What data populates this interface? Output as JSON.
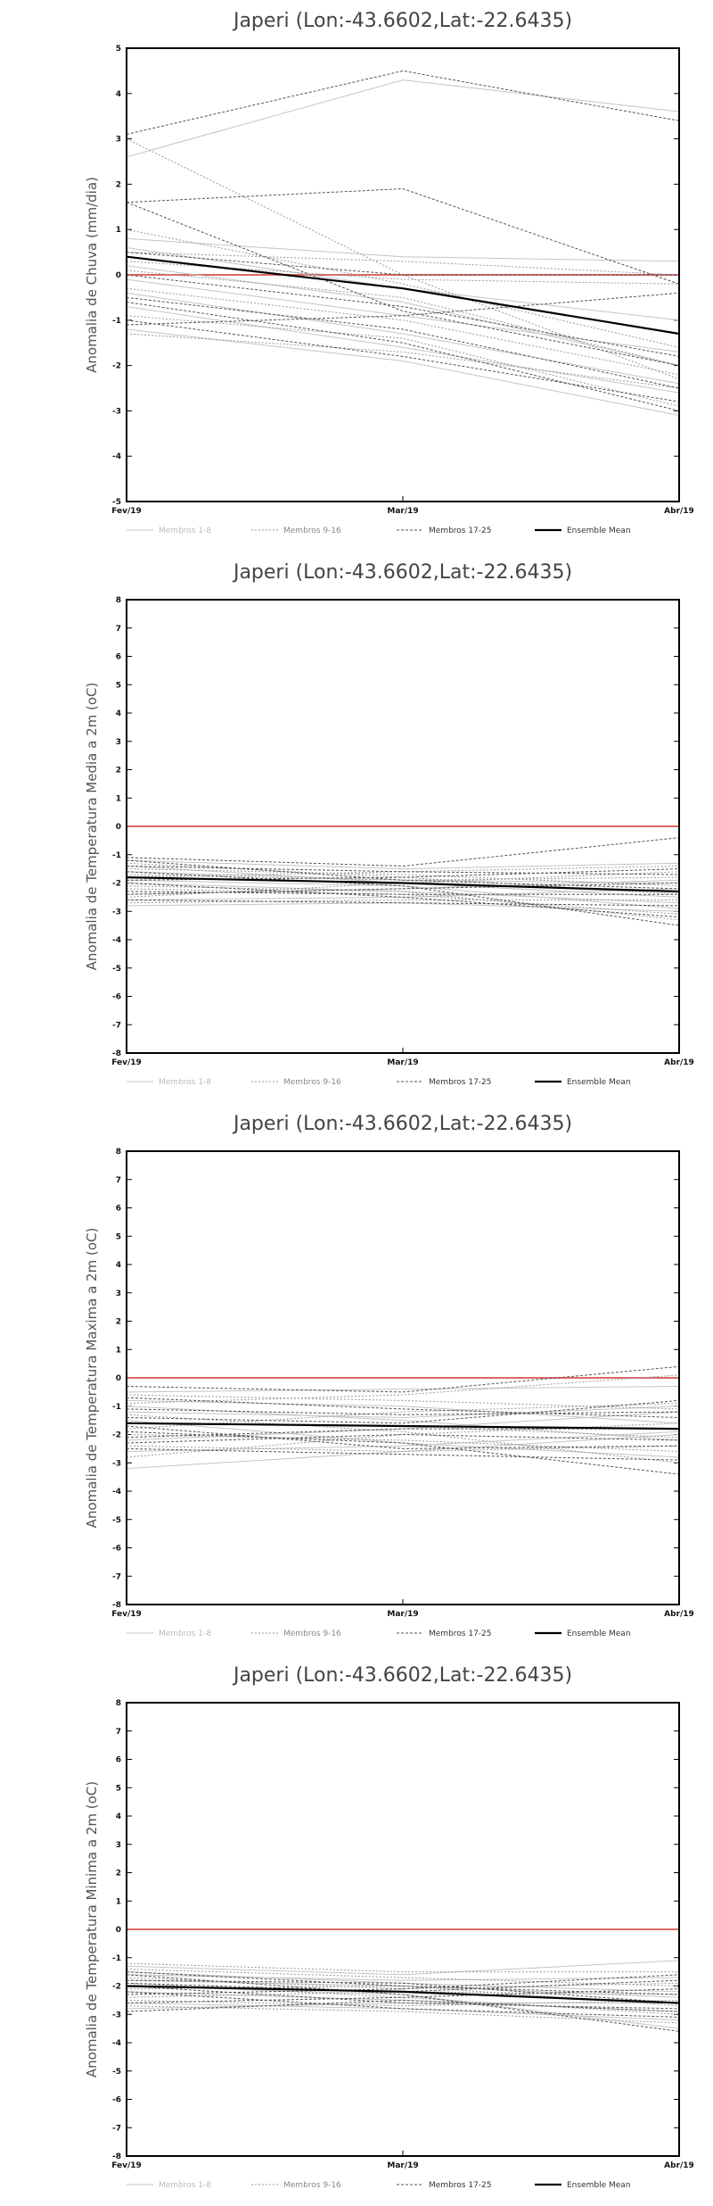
{
  "chart_data": [
    {
      "type": "line",
      "title": "Japeri (Lon:-43.6602,Lat:-22.6435)",
      "ylabel": "Anomalia de Chuva (mm/dia)",
      "categories": [
        "Fev/19",
        "Mar/19",
        "Abr/19"
      ],
      "ylim": [
        -5,
        5
      ],
      "yticks": [
        -5,
        -4,
        -3,
        -2,
        -1,
        0,
        1,
        2,
        3,
        4,
        5
      ],
      "legend": {
        "placement": "bottom",
        "entries": [
          "Membros 1-8",
          "Membros 9-16",
          "Membros 17-25",
          "Ensemble Mean"
        ]
      },
      "reference_line": 0,
      "series": [
        {
          "group": 1,
          "values": [
            2.6,
            4.3,
            3.6
          ]
        },
        {
          "group": 1,
          "values": [
            0.8,
            0.4,
            0.3
          ]
        },
        {
          "group": 1,
          "values": [
            -0.1,
            -0.9,
            -1.7
          ]
        },
        {
          "group": 1,
          "values": [
            -0.4,
            -1.3,
            -2.4
          ]
        },
        {
          "group": 1,
          "values": [
            0.6,
            -0.3,
            -1.0
          ]
        },
        {
          "group": 1,
          "values": [
            -1.2,
            -1.9,
            -3.1
          ]
        },
        {
          "group": 1,
          "values": [
            0.2,
            -0.6,
            -2.0
          ]
        },
        {
          "group": 1,
          "values": [
            -0.7,
            -1.6,
            -2.6
          ]
        },
        {
          "group": 2,
          "values": [
            3.0,
            0.0,
            -2.3
          ]
        },
        {
          "group": 2,
          "values": [
            0.5,
            0.3,
            0.0
          ]
        },
        {
          "group": 2,
          "values": [
            -0.3,
            -1.0,
            -2.2
          ]
        },
        {
          "group": 2,
          "values": [
            -1.3,
            -1.7,
            -2.5
          ]
        },
        {
          "group": 2,
          "values": [
            1.0,
            -0.2,
            -1.6
          ]
        },
        {
          "group": 2,
          "values": [
            0.1,
            -0.5,
            -2.0
          ]
        },
        {
          "group": 2,
          "values": [
            -0.9,
            -1.4,
            -2.9
          ]
        },
        {
          "group": 2,
          "values": [
            0.3,
            -0.1,
            -0.2
          ]
        },
        {
          "group": 3,
          "values": [
            3.1,
            4.5,
            3.4
          ]
        },
        {
          "group": 3,
          "values": [
            1.6,
            1.9,
            -0.2
          ]
        },
        {
          "group": 3,
          "values": [
            1.6,
            -0.8,
            -2.0
          ]
        },
        {
          "group": 3,
          "values": [
            0.5,
            0.0,
            0.0
          ]
        },
        {
          "group": 3,
          "values": [
            -1.1,
            -0.9,
            -0.4
          ]
        },
        {
          "group": 3,
          "values": [
            -0.5,
            -1.2,
            -2.5
          ]
        },
        {
          "group": 3,
          "values": [
            -1.0,
            -1.8,
            -2.8
          ]
        },
        {
          "group": 3,
          "values": [
            0.0,
            -0.7,
            -1.8
          ]
        },
        {
          "group": 3,
          "values": [
            -0.6,
            -1.5,
            -3.0
          ]
        },
        {
          "group": "mean",
          "values": [
            0.4,
            -0.3,
            -1.3
          ]
        }
      ]
    },
    {
      "type": "line",
      "title": "Japeri (Lon:-43.6602,Lat:-22.6435)",
      "ylabel": "Anomalia de Temperatura Media a 2m (oC)",
      "categories": [
        "Fev/19",
        "Mar/19",
        "Abr/19"
      ],
      "ylim": [
        -8,
        8
      ],
      "yticks": [
        -8,
        -7,
        -6,
        -5,
        -4,
        -3,
        -2,
        -1,
        0,
        1,
        2,
        3,
        4,
        5,
        6,
        7,
        8
      ],
      "legend": {
        "placement": "bottom",
        "entries": [
          "Membros 1-8",
          "Membros 9-16",
          "Membros 17-25",
          "Ensemble Mean"
        ]
      },
      "reference_line": 0,
      "series": [
        {
          "group": 1,
          "values": [
            -1.2,
            -1.5,
            -1.3
          ]
        },
        {
          "group": 1,
          "values": [
            -2.0,
            -2.3,
            -2.7
          ]
        },
        {
          "group": 1,
          "values": [
            -2.8,
            -2.7,
            -3.0
          ]
        },
        {
          "group": 1,
          "values": [
            -1.6,
            -1.9,
            -2.0
          ]
        },
        {
          "group": 1,
          "values": [
            -2.4,
            -2.2,
            -1.9
          ]
        },
        {
          "group": 1,
          "values": [
            -1.4,
            -2.0,
            -2.5
          ]
        },
        {
          "group": 1,
          "values": [
            -2.6,
            -2.5,
            -2.2
          ]
        },
        {
          "group": 1,
          "values": [
            -1.9,
            -2.1,
            -2.9
          ]
        },
        {
          "group": 2,
          "values": [
            -1.3,
            -1.8,
            -2.4
          ]
        },
        {
          "group": 2,
          "values": [
            -1.8,
            -1.6,
            -1.4
          ]
        },
        {
          "group": 2,
          "values": [
            -2.2,
            -2.4,
            -3.1
          ]
        },
        {
          "group": 2,
          "values": [
            -2.5,
            -2.0,
            -1.6
          ]
        },
        {
          "group": 2,
          "values": [
            -1.5,
            -1.7,
            -2.1
          ]
        },
        {
          "group": 2,
          "values": [
            -2.7,
            -2.6,
            -2.6
          ]
        },
        {
          "group": 2,
          "values": [
            -2.1,
            -2.3,
            -3.3
          ]
        },
        {
          "group": 2,
          "values": [
            -1.7,
            -1.9,
            -1.8
          ]
        },
        {
          "group": 3,
          "values": [
            -1.1,
            -1.4,
            -0.4
          ]
        },
        {
          "group": 3,
          "values": [
            -1.6,
            -2.1,
            -3.5
          ]
        },
        {
          "group": 3,
          "values": [
            -2.3,
            -2.4,
            -2.4
          ]
        },
        {
          "group": 3,
          "values": [
            -1.9,
            -1.8,
            -1.5
          ]
        },
        {
          "group": 3,
          "values": [
            -2.0,
            -2.5,
            -3.2
          ]
        },
        {
          "group": 3,
          "values": [
            -1.4,
            -1.6,
            -1.7
          ]
        },
        {
          "group": 3,
          "values": [
            -2.6,
            -2.7,
            -2.8
          ]
        },
        {
          "group": 3,
          "values": [
            -1.2,
            -1.9,
            -2.2
          ]
        },
        {
          "group": 3,
          "values": [
            -2.4,
            -2.2,
            -2.0
          ]
        },
        {
          "group": "mean",
          "values": [
            -1.8,
            -2.0,
            -2.3
          ]
        }
      ]
    },
    {
      "type": "line",
      "title": "Japeri (Lon:-43.6602,Lat:-22.6435)",
      "ylabel": "Anomalia de Temperatura Maxima a 2m (oC)",
      "categories": [
        "Fev/19",
        "Mar/19",
        "Abr/19"
      ],
      "ylim": [
        -8,
        8
      ],
      "yticks": [
        -8,
        -7,
        -6,
        -5,
        -4,
        -3,
        -2,
        -1,
        0,
        1,
        2,
        3,
        4,
        5,
        6,
        7,
        8
      ],
      "legend": {
        "placement": "bottom",
        "entries": [
          "Membros 1-8",
          "Membros 9-16",
          "Membros 17-25",
          "Ensemble Mean"
        ]
      },
      "reference_line": 0,
      "series": [
        {
          "group": 1,
          "values": [
            -3.2,
            -2.6,
            -2.0
          ]
        },
        {
          "group": 1,
          "values": [
            -0.5,
            -0.4,
            -0.3
          ]
        },
        {
          "group": 1,
          "values": [
            -1.0,
            -1.5,
            -2.2
          ]
        },
        {
          "group": 1,
          "values": [
            -2.2,
            -1.8,
            -1.2
          ]
        },
        {
          "group": 1,
          "values": [
            -1.5,
            -2.3,
            -2.8
          ]
        },
        {
          "group": 1,
          "values": [
            -0.8,
            -1.0,
            -1.6
          ]
        },
        {
          "group": 1,
          "values": [
            -2.6,
            -2.4,
            -1.9
          ]
        },
        {
          "group": 1,
          "values": [
            -1.2,
            -1.4,
            -1.0
          ]
        },
        {
          "group": 2,
          "values": [
            -0.6,
            -0.8,
            -1.1
          ]
        },
        {
          "group": 2,
          "values": [
            -2.0,
            -2.2,
            -2.6
          ]
        },
        {
          "group": 2,
          "values": [
            -1.8,
            -1.2,
            -0.9
          ]
        },
        {
          "group": 2,
          "values": [
            -2.4,
            -2.6,
            -2.4
          ]
        },
        {
          "group": 2,
          "values": [
            -1.3,
            -1.9,
            -3.0
          ]
        },
        {
          "group": 2,
          "values": [
            -0.9,
            -0.6,
            0.1
          ]
        },
        {
          "group": 2,
          "values": [
            -2.8,
            -2.0,
            -1.6
          ]
        },
        {
          "group": 2,
          "values": [
            -1.6,
            -1.7,
            -2.1
          ]
        },
        {
          "group": 3,
          "values": [
            -0.3,
            -0.5,
            0.4
          ]
        },
        {
          "group": 3,
          "values": [
            -1.9,
            -2.3,
            -3.4
          ]
        },
        {
          "group": 3,
          "values": [
            -1.1,
            -1.3,
            -1.2
          ]
        },
        {
          "group": 3,
          "values": [
            -2.3,
            -2.0,
            -2.2
          ]
        },
        {
          "group": 3,
          "values": [
            -1.4,
            -1.6,
            -0.8
          ]
        },
        {
          "group": 3,
          "values": [
            -2.5,
            -2.7,
            -2.9
          ]
        },
        {
          "group": 3,
          "values": [
            -0.7,
            -1.1,
            -1.4
          ]
        },
        {
          "group": 3,
          "values": [
            -1.7,
            -2.5,
            -2.4
          ]
        },
        {
          "group": 3,
          "values": [
            -2.1,
            -1.8,
            -1.8
          ]
        },
        {
          "group": "mean",
          "values": [
            -1.6,
            -1.7,
            -1.8
          ]
        }
      ]
    },
    {
      "type": "line",
      "title": "Japeri (Lon:-43.6602,Lat:-22.6435)",
      "ylabel": "Anomalia de Temperatura Minima a 2m (oC)",
      "categories": [
        "Fev/19",
        "Mar/19",
        "Abr/19"
      ],
      "ylim": [
        -8,
        8
      ],
      "yticks": [
        -8,
        -7,
        -6,
        -5,
        -4,
        -3,
        -2,
        -1,
        0,
        1,
        2,
        3,
        4,
        5,
        6,
        7,
        8
      ],
      "legend": {
        "placement": "bottom",
        "entries": [
          "Membros 1-8",
          "Membros 9-16",
          "Membros 17-25",
          "Ensemble Mean"
        ]
      },
      "reference_line": 0,
      "series": [
        {
          "group": 1,
          "values": [
            -1.3,
            -1.6,
            -1.1
          ]
        },
        {
          "group": 1,
          "values": [
            -2.6,
            -2.8,
            -3.2
          ]
        },
        {
          "group": 1,
          "values": [
            -1.8,
            -2.0,
            -2.4
          ]
        },
        {
          "group": 1,
          "values": [
            -2.2,
            -2.5,
            -2.9
          ]
        },
        {
          "group": 1,
          "values": [
            -1.5,
            -1.9,
            -2.2
          ]
        },
        {
          "group": 1,
          "values": [
            -2.8,
            -2.6,
            -2.6
          ]
        },
        {
          "group": 1,
          "values": [
            -2.0,
            -2.3,
            -3.5
          ]
        },
        {
          "group": 1,
          "values": [
            -1.6,
            -1.8,
            -1.7
          ]
        },
        {
          "group": 2,
          "values": [
            -1.4,
            -1.7,
            -2.0
          ]
        },
        {
          "group": 2,
          "values": [
            -2.4,
            -2.2,
            -2.3
          ]
        },
        {
          "group": 2,
          "values": [
            -1.9,
            -2.4,
            -3.0
          ]
        },
        {
          "group": 2,
          "values": [
            -2.7,
            -2.9,
            -3.3
          ]
        },
        {
          "group": 2,
          "values": [
            -1.7,
            -2.1,
            -1.9
          ]
        },
        {
          "group": 2,
          "values": [
            -2.1,
            -2.0,
            -2.7
          ]
        },
        {
          "group": 2,
          "values": [
            -2.5,
            -2.7,
            -2.5
          ]
        },
        {
          "group": 2,
          "values": [
            -1.2,
            -1.5,
            -1.5
          ]
        },
        {
          "group": 3,
          "values": [
            -2.3,
            -2.1,
            -1.6
          ]
        },
        {
          "group": 3,
          "values": [
            -1.6,
            -2.3,
            -3.6
          ]
        },
        {
          "group": 3,
          "values": [
            -2.0,
            -2.6,
            -2.8
          ]
        },
        {
          "group": 3,
          "values": [
            -2.6,
            -2.4,
            -2.1
          ]
        },
        {
          "group": 3,
          "values": [
            -1.8,
            -1.9,
            -2.6
          ]
        },
        {
          "group": 3,
          "values": [
            -2.2,
            -2.8,
            -3.1
          ]
        },
        {
          "group": 3,
          "values": [
            -1.5,
            -2.0,
            -2.3
          ]
        },
        {
          "group": 3,
          "values": [
            -2.9,
            -2.5,
            -2.9
          ]
        },
        {
          "group": 3,
          "values": [
            -1.9,
            -2.2,
            -1.8
          ]
        },
        {
          "group": "mean",
          "values": [
            -2.0,
            -2.2,
            -2.6
          ]
        }
      ]
    }
  ],
  "colors": {
    "group1": "#c4c4c4",
    "group2": "#9a9a9a",
    "group3": "#555555",
    "mean": "#000000",
    "reference": "#e06666"
  }
}
